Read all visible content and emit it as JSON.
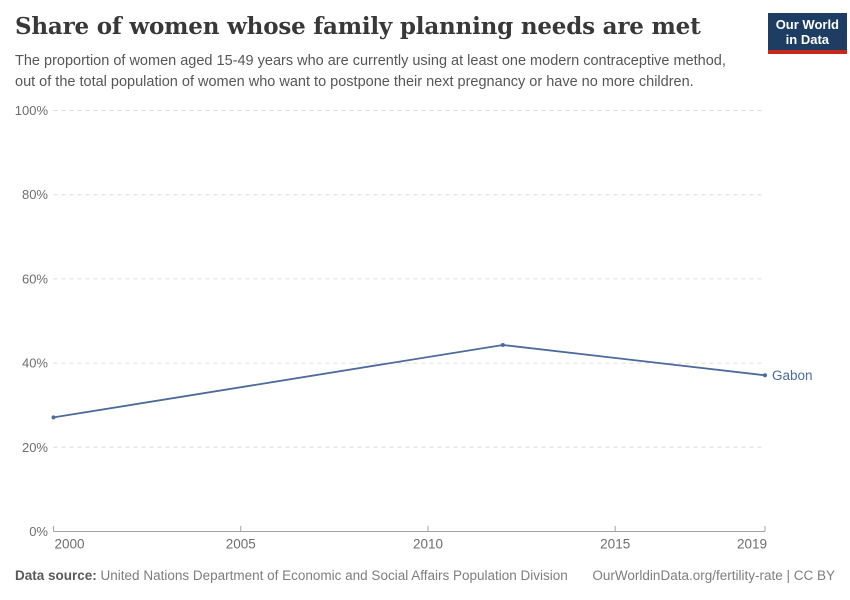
{
  "header": {
    "title": "Share of women whose family planning needs are met",
    "subtitle_lines": [
      "The proportion of women aged 15-49 years who are currently using at least one modern contraceptive method,",
      "out of the total population of women who want to postpone their next pregnancy or have no more children."
    ],
    "logo": {
      "line1": "Our World",
      "line2": "in Data",
      "bg_color": "#1d3d63",
      "accent_color": "#c5281c"
    }
  },
  "chart_data": {
    "type": "line",
    "title": "Share of women whose family planning needs are met",
    "x": [
      2000,
      2012,
      2019
    ],
    "series": [
      {
        "name": "Gabon",
        "color": "#4C6A9C",
        "values": [
          27.1,
          44.3,
          37.1
        ]
      }
    ],
    "xticks": [
      2000,
      2005,
      2010,
      2015,
      2019
    ],
    "yticks": [
      0,
      20,
      40,
      60,
      80,
      100
    ],
    "xlim": [
      2000,
      2019
    ],
    "ylim": [
      0,
      100
    ],
    "y_tick_suffix": "%",
    "grid": "horizontal-dashed",
    "legend_position": "end-of-line",
    "axis_color": "#a3a3a3",
    "gridline_color": "#dcdcdc",
    "tick_label_color": "#6e6e6e"
  },
  "footer": {
    "source_label": "Data source:",
    "source_text": "United Nations Department of Economic and Social Affairs Population Division",
    "link_text": "OurWorldinData.org/fertility-rate | CC BY"
  }
}
